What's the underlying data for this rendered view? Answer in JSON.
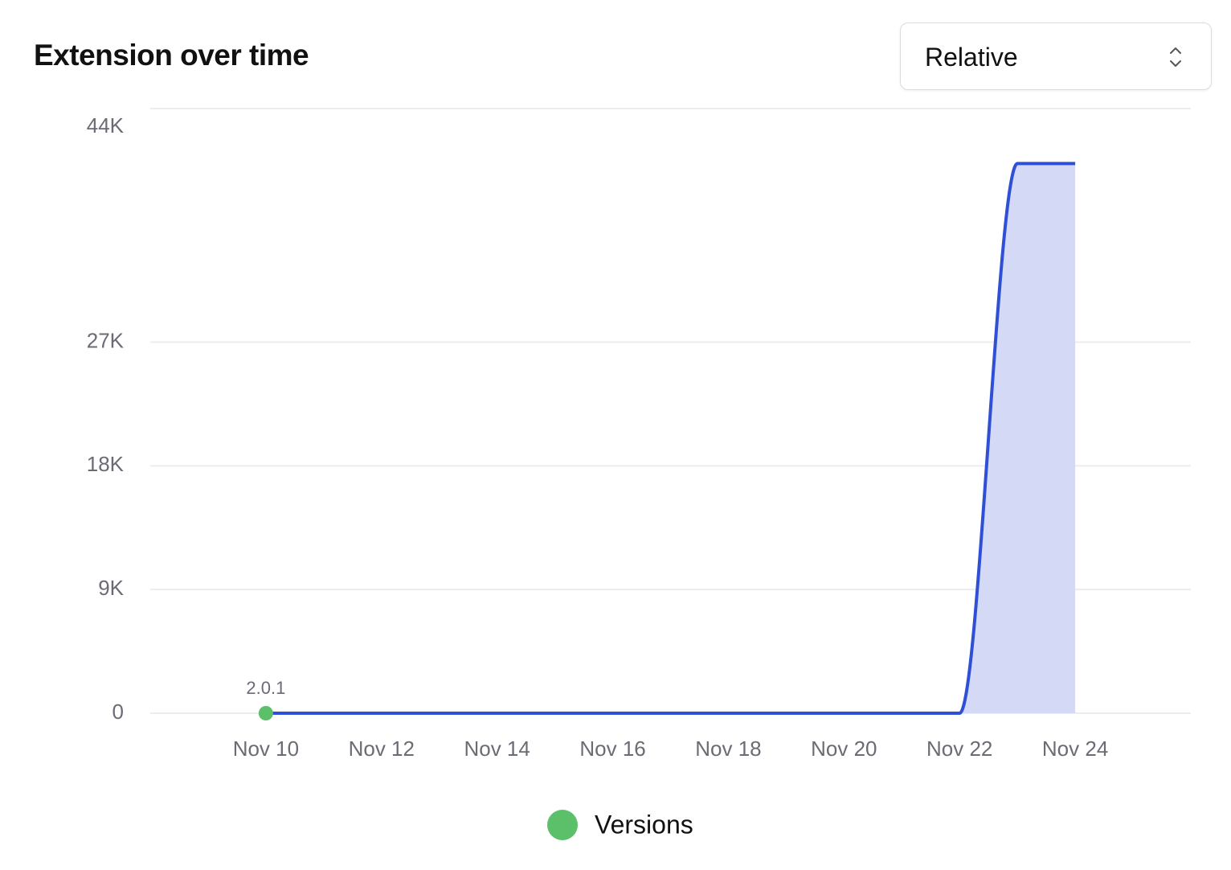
{
  "header": {
    "title": "Extension over time"
  },
  "controls": {
    "mode_select": "Relative"
  },
  "chart_data": {
    "type": "area",
    "x": [
      "Nov 10",
      null,
      "Nov 12",
      null,
      "Nov 14",
      null,
      "Nov 16",
      null,
      "Nov 18",
      null,
      "Nov 20",
      null,
      "Nov 22",
      null,
      "Nov 24"
    ],
    "series": [
      {
        "color": "#2f4fd6",
        "fill": "#d4d9f5",
        "values": [
          0,
          0,
          0,
          0,
          0,
          0,
          0,
          0,
          0,
          0,
          0,
          0,
          0,
          40000,
          40000
        ]
      }
    ],
    "ylim": [
      0,
      44000
    ],
    "yticks": [
      0,
      {
        "value": 9000,
        "label": "9K"
      },
      {
        "value": 18000,
        "label": "18K"
      },
      {
        "value": 27000,
        "label": "27K"
      },
      {
        "value": 44000,
        "label": "44K"
      }
    ],
    "grid": true,
    "versions": {
      "name": "Versions",
      "color": "#5cc06b",
      "markers": [
        {
          "label": "2.0.1",
          "x": "Nov 10"
        }
      ]
    }
  }
}
